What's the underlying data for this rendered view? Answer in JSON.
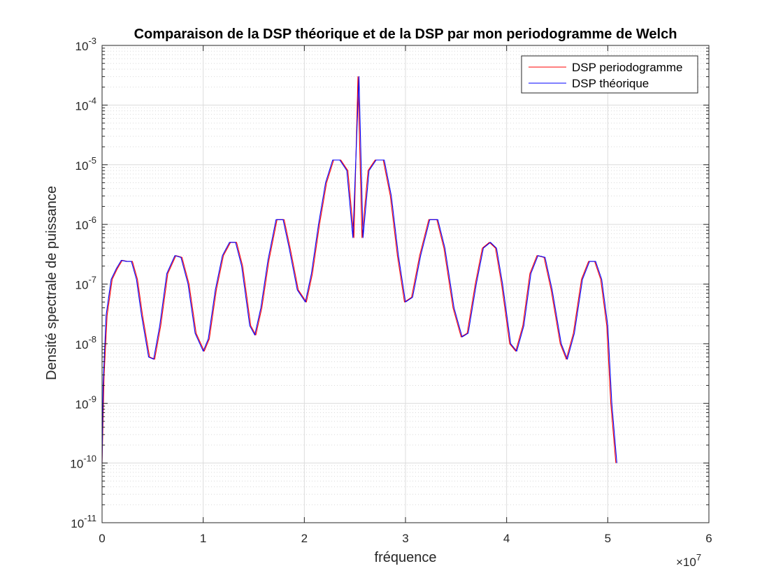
{
  "chart_data": {
    "type": "line",
    "title": "Comparaison de la DSP théorique et de la DSP par mon periodogramme de Welch",
    "xlabel": "fréquence",
    "ylabel": "Densité spectrale de puissance",
    "x_multiplier_label": "×10",
    "x_multiplier_exponent": "7",
    "xlim": [
      0,
      60000000
    ],
    "ylim": [
      1e-11,
      0.001
    ],
    "yscale": "log",
    "grid": true,
    "minor_grid": true,
    "legend_location": "top-right",
    "x_tick_values": [
      0,
      10000000,
      20000000,
      30000000,
      40000000,
      50000000,
      60000000
    ],
    "x_tick_labels": [
      "0",
      "1",
      "2",
      "3",
      "4",
      "5",
      "6"
    ],
    "y_tick_values": [
      1e-11,
      1e-10,
      1e-09,
      1e-08,
      1e-07,
      1e-06,
      1e-05,
      0.0001,
      0.001
    ],
    "y_tick_labels": [
      {
        "base": "10",
        "exp": "-11"
      },
      {
        "base": "10",
        "exp": "-10"
      },
      {
        "base": "10",
        "exp": "-9"
      },
      {
        "base": "10",
        "exp": "-8"
      },
      {
        "base": "10",
        "exp": "-7"
      },
      {
        "base": "10",
        "exp": "-6"
      },
      {
        "base": "10",
        "exp": "-5"
      },
      {
        "base": "10",
        "exp": "-4"
      },
      {
        "base": "10",
        "exp": "-3"
      }
    ],
    "series": [
      {
        "name": "DSP periodogramme",
        "color": "#ff0000",
        "points": [
          [
            0,
            1e-10
          ],
          [
            200000,
            3e-09
          ],
          [
            500000,
            3e-08
          ],
          [
            1000000,
            1.2e-07
          ],
          [
            1500000,
            1.8e-07
          ],
          [
            2000000,
            2.5e-07
          ],
          [
            2500000,
            2.4e-07
          ],
          [
            3000000,
            2.4e-07
          ],
          [
            3500000,
            1.2e-07
          ],
          [
            4000000,
            3e-08
          ],
          [
            4700000,
            6e-09
          ],
          [
            5200000,
            5.5e-09
          ],
          [
            5800000,
            2e-08
          ],
          [
            6500000,
            1.5e-07
          ],
          [
            7300000,
            3e-07
          ],
          [
            7900000,
            2.8e-07
          ],
          [
            8600000,
            1e-07
          ],
          [
            9300000,
            1.5e-08
          ],
          [
            10100000,
            7.5e-09
          ],
          [
            10600000,
            1.2e-08
          ],
          [
            11300000,
            8e-08
          ],
          [
            12000000,
            3e-07
          ],
          [
            12700000,
            5e-07
          ],
          [
            13300000,
            5e-07
          ],
          [
            13900000,
            2e-07
          ],
          [
            14700000,
            2e-08
          ],
          [
            15200000,
            1.4e-08
          ],
          [
            15800000,
            4e-08
          ],
          [
            16500000,
            2.5e-07
          ],
          [
            17300000,
            1.2e-06
          ],
          [
            18000000,
            1.2e-06
          ],
          [
            18600000,
            4e-07
          ],
          [
            19400000,
            8e-08
          ],
          [
            20200000,
            5e-08
          ],
          [
            20800000,
            1.5e-07
          ],
          [
            21500000,
            1e-06
          ],
          [
            22200000,
            5e-06
          ],
          [
            22900000,
            1.2e-05
          ],
          [
            23600000,
            1.2e-05
          ],
          [
            24300000,
            8e-06
          ],
          [
            24900000,
            6e-07
          ],
          [
            25300000,
            0.0003
          ],
          [
            25700000,
            6e-07
          ],
          [
            26300000,
            8e-06
          ],
          [
            27000000,
            1.2e-05
          ],
          [
            27800000,
            1.2e-05
          ],
          [
            28500000,
            3e-06
          ],
          [
            29200000,
            3e-07
          ],
          [
            29900000,
            5e-08
          ],
          [
            30600000,
            6e-08
          ],
          [
            31400000,
            3e-07
          ],
          [
            32300000,
            1.2e-06
          ],
          [
            33100000,
            1.2e-06
          ],
          [
            33800000,
            4e-07
          ],
          [
            34700000,
            4e-08
          ],
          [
            35500000,
            1.3e-08
          ],
          [
            36100000,
            1.5e-08
          ],
          [
            36900000,
            1e-07
          ],
          [
            37600000,
            4e-07
          ],
          [
            38300000,
            5e-07
          ],
          [
            38900000,
            4e-07
          ],
          [
            39500000,
            1e-07
          ],
          [
            40300000,
            1e-08
          ],
          [
            40900000,
            7.5e-09
          ],
          [
            41600000,
            2e-08
          ],
          [
            42300000,
            1.5e-07
          ],
          [
            43000000,
            3e-07
          ],
          [
            43700000,
            2.8e-07
          ],
          [
            44400000,
            8e-08
          ],
          [
            45300000,
            1e-08
          ],
          [
            45900000,
            5.5e-09
          ],
          [
            46600000,
            1.5e-08
          ],
          [
            47400000,
            1.2e-07
          ],
          [
            48100000,
            2.4e-07
          ],
          [
            48700000,
            2.4e-07
          ],
          [
            49300000,
            1.2e-07
          ],
          [
            49900000,
            2e-08
          ],
          [
            50300000,
            1e-09
          ],
          [
            50800000,
            1e-10
          ]
        ]
      },
      {
        "name": "DSP théorique",
        "color": "#0000ff",
        "points": [
          [
            0,
            1e-10
          ],
          [
            100000,
            2e-09
          ],
          [
            400000,
            3e-08
          ],
          [
            900000,
            1.2e-07
          ],
          [
            1400000,
            1.8e-07
          ],
          [
            1900000,
            2.5e-07
          ],
          [
            2400000,
            2.4e-07
          ],
          [
            2900000,
            2.4e-07
          ],
          [
            3400000,
            1.2e-07
          ],
          [
            3900000,
            3e-08
          ],
          [
            4600000,
            6e-09
          ],
          [
            5100000,
            5.5e-09
          ],
          [
            5700000,
            2e-08
          ],
          [
            6400000,
            1.5e-07
          ],
          [
            7200000,
            3e-07
          ],
          [
            7800000,
            2.8e-07
          ],
          [
            8500000,
            1e-07
          ],
          [
            9200000,
            1.5e-08
          ],
          [
            10000000,
            7.5e-09
          ],
          [
            10500000,
            1.2e-08
          ],
          [
            11200000,
            8e-08
          ],
          [
            11900000,
            3e-07
          ],
          [
            12600000,
            5e-07
          ],
          [
            13200000,
            5e-07
          ],
          [
            13800000,
            2e-07
          ],
          [
            14600000,
            2e-08
          ],
          [
            15100000,
            1.4e-08
          ],
          [
            15700000,
            4e-08
          ],
          [
            16400000,
            2.5e-07
          ],
          [
            17200000,
            1.2e-06
          ],
          [
            17900000,
            1.2e-06
          ],
          [
            18500000,
            4e-07
          ],
          [
            19300000,
            8e-08
          ],
          [
            20100000,
            5e-08
          ],
          [
            20700000,
            1.5e-07
          ],
          [
            21400000,
            1e-06
          ],
          [
            22100000,
            5e-06
          ],
          [
            22800000,
            1.2e-05
          ],
          [
            23500000,
            1.2e-05
          ],
          [
            24200000,
            8e-06
          ],
          [
            24800000,
            6e-07
          ],
          [
            25400000,
            0.0003
          ],
          [
            25800000,
            6e-07
          ],
          [
            26400000,
            8e-06
          ],
          [
            27100000,
            1.2e-05
          ],
          [
            27900000,
            1.2e-05
          ],
          [
            28600000,
            3e-06
          ],
          [
            29300000,
            3e-07
          ],
          [
            30000000,
            5e-08
          ],
          [
            30700000,
            6e-08
          ],
          [
            31500000,
            3e-07
          ],
          [
            32400000,
            1.2e-06
          ],
          [
            33200000,
            1.2e-06
          ],
          [
            33900000,
            4e-07
          ],
          [
            34800000,
            4e-08
          ],
          [
            35600000,
            1.3e-08
          ],
          [
            36200000,
            1.5e-08
          ],
          [
            37000000,
            1e-07
          ],
          [
            37700000,
            4e-07
          ],
          [
            38400000,
            5e-07
          ],
          [
            39000000,
            4e-07
          ],
          [
            39600000,
            1e-07
          ],
          [
            40400000,
            1e-08
          ],
          [
            41000000,
            7.5e-09
          ],
          [
            41700000,
            2e-08
          ],
          [
            42400000,
            1.5e-07
          ],
          [
            43100000,
            3e-07
          ],
          [
            43800000,
            2.8e-07
          ],
          [
            44500000,
            8e-08
          ],
          [
            45400000,
            1e-08
          ],
          [
            46000000,
            5.5e-09
          ],
          [
            46700000,
            1.5e-08
          ],
          [
            47500000,
            1.2e-07
          ],
          [
            48200000,
            2.4e-07
          ],
          [
            48800000,
            2.4e-07
          ],
          [
            49400000,
            1.2e-07
          ],
          [
            50000000,
            2e-08
          ],
          [
            50400000,
            1e-09
          ],
          [
            50900000,
            1e-10
          ]
        ]
      }
    ]
  }
}
